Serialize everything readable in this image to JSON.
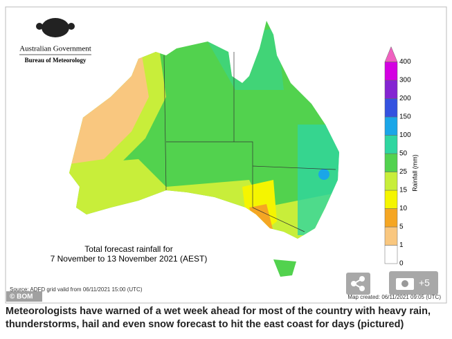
{
  "logo": {
    "line1": "Australian Government",
    "line2": "Bureau of Meteorology"
  },
  "map_title": {
    "line1": "Total forecast rainfall for",
    "line2": "7 November to 13 November 2021 (AEST)"
  },
  "legend": {
    "title": "Rainfall (mm)",
    "labels": [
      "0",
      "1",
      "5",
      "10",
      "15",
      "25",
      "50",
      "100",
      "150",
      "200",
      "300",
      "400"
    ],
    "colors": [
      "#ffffff",
      "#f9c77f",
      "#f5a623",
      "#f5f500",
      "#c8ee3a",
      "#52d24e",
      "#2fd6a0",
      "#1aa6e8",
      "#3452e0",
      "#8424d2",
      "#d400e2",
      "#f060c0"
    ]
  },
  "source": "Source: ADFD grid valid from 06/11/2021 15:00 (UTC)",
  "created": "Map created: 06/11/2021 09:05 (UTC)",
  "credit": "© BOM",
  "photo_count": "+5",
  "caption": "Meteorologists have warned of a wet week ahead for most of the country with heavy rain, thunderstorms, hail and even snow forecast to hit the east coast for days (pictured)"
}
